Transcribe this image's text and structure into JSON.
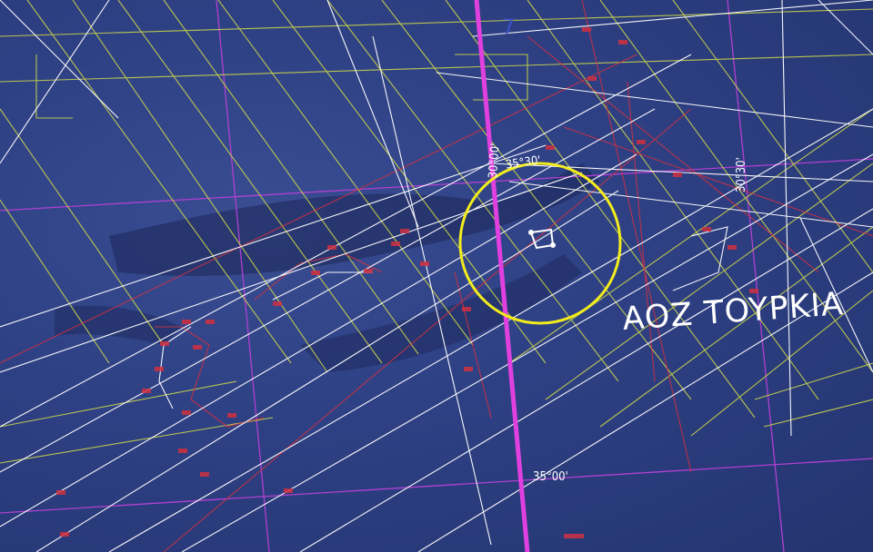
{
  "zone_label": "AOZ TOYPKIA",
  "coordinates": {
    "lat_top": "35°30'",
    "lon_center": "30°00'",
    "lon_right": "30°30'",
    "lat_bottom": "35°00'"
  },
  "marker_tag": "7",
  "colors": {
    "sea": "#2f4185",
    "boundary_highlight": "#e040e0",
    "grid_lines": "#b040d0",
    "blocks": "#c8d44a",
    "tracks": "#ffffff",
    "seismic": "#d03040",
    "highlight_circle": "#f2ec1c"
  }
}
